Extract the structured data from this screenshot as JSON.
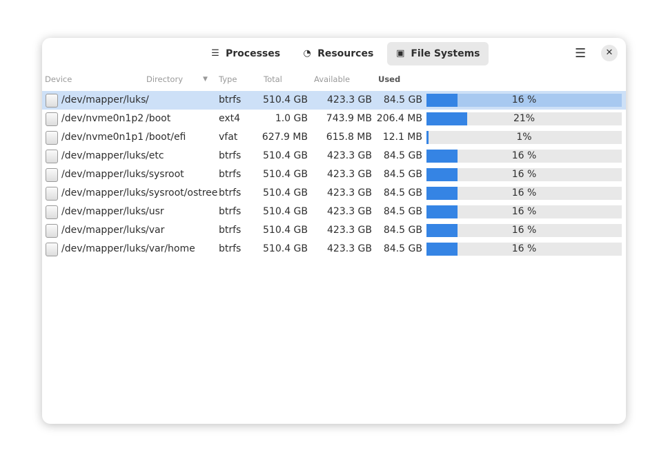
{
  "tabs": [
    {
      "label": "Processes",
      "icon": "list-icon"
    },
    {
      "label": "Resources",
      "icon": "gauge-icon"
    },
    {
      "label": "File Systems",
      "icon": "disk-icon",
      "active": true
    }
  ],
  "columns": {
    "device": "Device",
    "directory": "Directory",
    "type": "Type",
    "total": "Total",
    "available": "Available",
    "used": "Used"
  },
  "rows": [
    {
      "device": "/dev/mapper/luks",
      "directory": "/",
      "type": "btrfs",
      "total": "510.4 GB",
      "available": "423.3 GB",
      "used": "84.5 GB",
      "percent": 16,
      "percent_label": "16 %",
      "selected": true
    },
    {
      "device": "/dev/nvme0n1p2",
      "directory": "/boot",
      "type": "ext4",
      "total": "1.0 GB",
      "available": "743.9 MB",
      "used": "206.4 MB",
      "percent": 21,
      "percent_label": "21%"
    },
    {
      "device": "/dev/nvme0n1p1",
      "directory": "/boot/efi",
      "type": "vfat",
      "total": "627.9 MB",
      "available": "615.8 MB",
      "used": "12.1 MB",
      "percent": 1,
      "percent_label": "1%"
    },
    {
      "device": "/dev/mapper/luks",
      "directory": "/etc",
      "type": "btrfs",
      "total": "510.4 GB",
      "available": "423.3 GB",
      "used": "84.5 GB",
      "percent": 16,
      "percent_label": "16 %"
    },
    {
      "device": "/dev/mapper/luks",
      "directory": "/sysroot",
      "type": "btrfs",
      "total": "510.4 GB",
      "available": "423.3 GB",
      "used": "84.5 GB",
      "percent": 16,
      "percent_label": "16 %"
    },
    {
      "device": "/dev/mapper/luks",
      "directory": "/sysroot/ostree",
      "type": "btrfs",
      "total": "510.4 GB",
      "available": "423.3 GB",
      "used": "84.5 GB",
      "percent": 16,
      "percent_label": "16 %"
    },
    {
      "device": "/dev/mapper/luks",
      "directory": "/usr",
      "type": "btrfs",
      "total": "510.4 GB",
      "available": "423.3 GB",
      "used": "84.5 GB",
      "percent": 16,
      "percent_label": "16 %"
    },
    {
      "device": "/dev/mapper/luks",
      "directory": "/var",
      "type": "btrfs",
      "total": "510.4 GB",
      "available": "423.3 GB",
      "used": "84.5 GB",
      "percent": 16,
      "percent_label": "16 %"
    },
    {
      "device": "/dev/mapper/luks",
      "directory": "/var/home",
      "type": "btrfs",
      "total": "510.4 GB",
      "available": "423.3 GB",
      "used": "84.5 GB",
      "percent": 16,
      "percent_label": "16 %"
    }
  ]
}
